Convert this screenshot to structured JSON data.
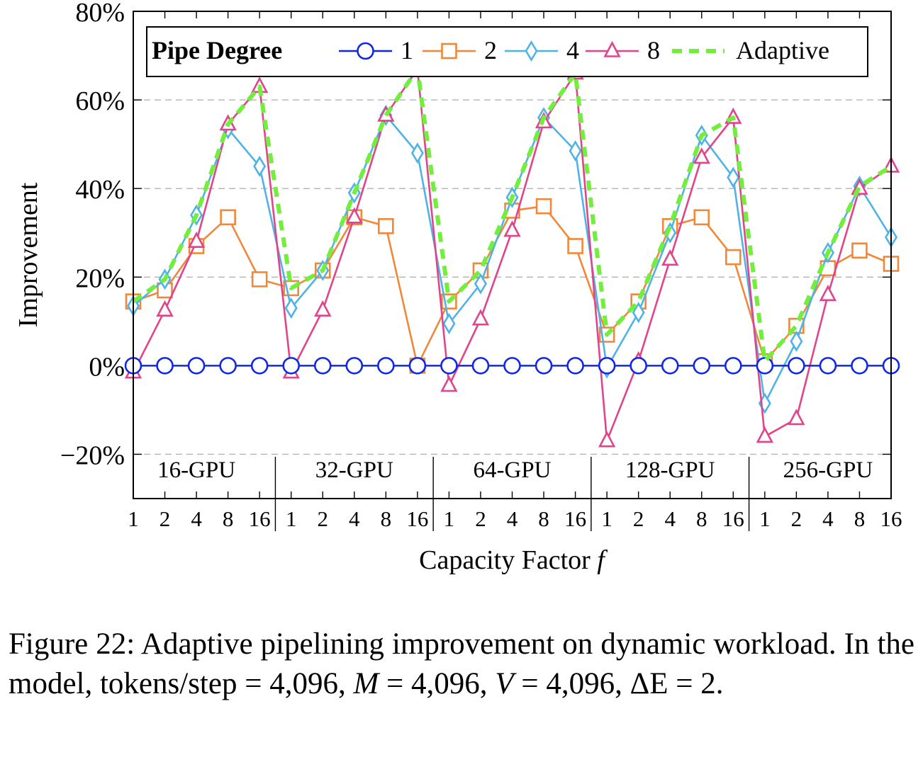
{
  "chart_data": {
    "type": "line",
    "xlabel": "Capacity Factor",
    "xlabel_var": "f",
    "ylabel": "Improvement",
    "ylim": [
      -30,
      80
    ],
    "yticks": [
      -20,
      0,
      20,
      40,
      60,
      80
    ],
    "ytick_labels": [
      "−20%",
      "0%",
      "20%",
      "40%",
      "60%",
      "80%"
    ],
    "grid": "horizontal dashed",
    "groups": [
      "16-GPU",
      "32-GPU",
      "64-GPU",
      "128-GPU",
      "256-GPU"
    ],
    "group_ticks": [
      "1",
      "2",
      "4",
      "8",
      "16"
    ],
    "legend": {
      "title": "Pipe Degree",
      "position": "top"
    },
    "series": [
      {
        "name": "1",
        "color": "#1028e6",
        "marker": "circle",
        "values": [
          0,
          0,
          0,
          0,
          0,
          0,
          0,
          0,
          0,
          0,
          0,
          0,
          0,
          0,
          0,
          0,
          0,
          0,
          0,
          0,
          0,
          0,
          0,
          0,
          0
        ]
      },
      {
        "name": "2",
        "color": "#f0883a",
        "marker": "square",
        "values": [
          14.5,
          17,
          27,
          33.5,
          19.5,
          17.5,
          21.5,
          33.5,
          31.5,
          0,
          14.5,
          21.5,
          35,
          36,
          27,
          7,
          14.5,
          31.5,
          33.5,
          24.5,
          1,
          9,
          22,
          26,
          23
        ]
      },
      {
        "name": "4",
        "color": "#4fb3e6",
        "marker": "diamond",
        "values": [
          13.5,
          19.5,
          34,
          53.5,
          45,
          13,
          21.5,
          39,
          56.5,
          48,
          9.5,
          18.5,
          38,
          56,
          48.5,
          -0.5,
          12,
          30,
          52,
          42.5,
          -8.5,
          5.5,
          25.5,
          40.5,
          29
        ]
      },
      {
        "name": "8",
        "color": "#e0448a",
        "marker": "triangle",
        "values": [
          -1.5,
          12.5,
          28,
          54.5,
          63,
          -1.5,
          12.5,
          33.5,
          56.5,
          67,
          -4.5,
          10.5,
          30.5,
          55,
          66,
          -17,
          1,
          24,
          47,
          56,
          -16,
          -12,
          16,
          40,
          45
        ]
      },
      {
        "name": "Adaptive",
        "color": "#72ee3c",
        "marker": "none",
        "dashed": true,
        "values": [
          14.5,
          19.5,
          34,
          54.5,
          63,
          17.5,
          21.5,
          39,
          56.5,
          67,
          14.5,
          21.5,
          38,
          56,
          66,
          7,
          14.5,
          31.5,
          52,
          56,
          1,
          9,
          25.5,
          40.5,
          45
        ]
      }
    ]
  },
  "caption": {
    "prefix": "Figure 22: Adaptive pipelining improvement on dynamic workload. In the model, tokens/step = 4,096, ",
    "m_var": "M",
    "mid1": " = 4,096, ",
    "v_var": "V",
    "suffix": " = 4,096, ΔE = 2."
  }
}
